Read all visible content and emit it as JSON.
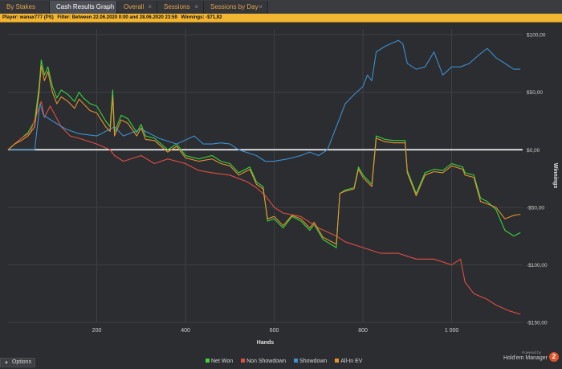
{
  "tabs": [
    {
      "label": "By Stakes",
      "close": ""
    },
    {
      "label": "Cash Results Graph",
      "close": "×"
    },
    {
      "label": "Overall",
      "close": "×"
    },
    {
      "label": "Sessions",
      "close": "×"
    },
    {
      "label": "Sessions by Day",
      "close": "×"
    }
  ],
  "filterbar": {
    "player": "Player: wanax777 (PS)",
    "filter": "Filter: Between 22.06.2020 0:00 and 28.06.2020 23:59",
    "winnings": "Winnings: -$71,92"
  },
  "footer": {
    "options_label": "Options",
    "powered_by": "Powered by",
    "brand_name": "Hold'em Manager",
    "brand_number": "2"
  },
  "colors": {
    "net_won": "#37d43b",
    "non_showdown": "#e04e42",
    "showdown": "#3c8fd0",
    "all_in_ev": "#e8912f",
    "zero_line": "#ffffff",
    "grid": "#3e4045",
    "background": "#2b2d30"
  },
  "chart_data": {
    "type": "line",
    "xlabel": "Hands",
    "ylabel": "Winnings",
    "xlim": [
      0,
      1160
    ],
    "ylim": [
      -150,
      105
    ],
    "x_ticks": [
      200,
      400,
      600,
      800,
      1000
    ],
    "x_tick_labels": [
      "200",
      "400",
      "600",
      "800",
      "1 000"
    ],
    "y_ticks": [
      100,
      50,
      0,
      -50,
      -100,
      -150
    ],
    "y_tick_labels": [
      "$100,00",
      "$50,00",
      "$0,00",
      "-$50,00",
      "-$100,00",
      "-$150,00"
    ],
    "grid": true,
    "legend_position": "bottom",
    "zero_line": 0,
    "series": [
      {
        "name": "Net Won",
        "color": "#37d43b",
        "points": [
          [
            0,
            0
          ],
          [
            15,
            5
          ],
          [
            30,
            10
          ],
          [
            45,
            15
          ],
          [
            60,
            25
          ],
          [
            70,
            55
          ],
          [
            75,
            78
          ],
          [
            82,
            65
          ],
          [
            90,
            72
          ],
          [
            100,
            55
          ],
          [
            110,
            45
          ],
          [
            120,
            52
          ],
          [
            135,
            48
          ],
          [
            150,
            42
          ],
          [
            160,
            50
          ],
          [
            170,
            45
          ],
          [
            185,
            40
          ],
          [
            200,
            38
          ],
          [
            220,
            25
          ],
          [
            230,
            20
          ],
          [
            236,
            52
          ],
          [
            240,
            15
          ],
          [
            255,
            30
          ],
          [
            270,
            27
          ],
          [
            290,
            15
          ],
          [
            300,
            22
          ],
          [
            310,
            12
          ],
          [
            330,
            10
          ],
          [
            360,
            0
          ],
          [
            380,
            5
          ],
          [
            400,
            -5
          ],
          [
            430,
            -8
          ],
          [
            460,
            -5
          ],
          [
            480,
            -10
          ],
          [
            500,
            -12
          ],
          [
            520,
            -20
          ],
          [
            545,
            -15
          ],
          [
            560,
            -28
          ],
          [
            575,
            -32
          ],
          [
            585,
            -62
          ],
          [
            600,
            -60
          ],
          [
            620,
            -68
          ],
          [
            640,
            -58
          ],
          [
            660,
            -62
          ],
          [
            680,
            -70
          ],
          [
            690,
            -65
          ],
          [
            710,
            -78
          ],
          [
            740,
            -85
          ],
          [
            748,
            -38
          ],
          [
            760,
            -35
          ],
          [
            780,
            -33
          ],
          [
            790,
            -15
          ],
          [
            800,
            -22
          ],
          [
            820,
            -30
          ],
          [
            830,
            12
          ],
          [
            850,
            9
          ],
          [
            870,
            8
          ],
          [
            895,
            8
          ],
          [
            900,
            -18
          ],
          [
            920,
            -38
          ],
          [
            940,
            -20
          ],
          [
            960,
            -17
          ],
          [
            980,
            -18
          ],
          [
            1000,
            -12
          ],
          [
            1025,
            -15
          ],
          [
            1030,
            -20
          ],
          [
            1050,
            -22
          ],
          [
            1065,
            -42
          ],
          [
            1080,
            -45
          ],
          [
            1100,
            -52
          ],
          [
            1120,
            -70
          ],
          [
            1140,
            -75
          ],
          [
            1155,
            -72
          ]
        ]
      },
      {
        "name": "Non Showdown",
        "color": "#e04e42",
        "points": [
          [
            0,
            0
          ],
          [
            15,
            5
          ],
          [
            30,
            10
          ],
          [
            50,
            15
          ],
          [
            75,
            42
          ],
          [
            82,
            28
          ],
          [
            95,
            38
          ],
          [
            120,
            20
          ],
          [
            140,
            12
          ],
          [
            160,
            10
          ],
          [
            200,
            5
          ],
          [
            230,
            0
          ],
          [
            240,
            -5
          ],
          [
            260,
            -10
          ],
          [
            300,
            -5
          ],
          [
            330,
            -12
          ],
          [
            360,
            -8
          ],
          [
            400,
            -12
          ],
          [
            430,
            -18
          ],
          [
            460,
            -20
          ],
          [
            500,
            -22
          ],
          [
            540,
            -28
          ],
          [
            560,
            -33
          ],
          [
            580,
            -40
          ],
          [
            600,
            -50
          ],
          [
            620,
            -55
          ],
          [
            660,
            -58
          ],
          [
            700,
            -68
          ],
          [
            740,
            -75
          ],
          [
            760,
            -80
          ],
          [
            800,
            -85
          ],
          [
            840,
            -90
          ],
          [
            880,
            -90
          ],
          [
            920,
            -95
          ],
          [
            960,
            -95
          ],
          [
            1000,
            -100
          ],
          [
            1020,
            -95
          ],
          [
            1030,
            -115
          ],
          [
            1050,
            -125
          ],
          [
            1080,
            -130
          ],
          [
            1100,
            -135
          ],
          [
            1130,
            -140
          ],
          [
            1155,
            -143
          ]
        ]
      },
      {
        "name": "Showdown",
        "color": "#3c8fd0",
        "points": [
          [
            0,
            0
          ],
          [
            20,
            0
          ],
          [
            60,
            0
          ],
          [
            72,
            40
          ],
          [
            80,
            30
          ],
          [
            100,
            25
          ],
          [
            130,
            18
          ],
          [
            160,
            14
          ],
          [
            200,
            12
          ],
          [
            240,
            20
          ],
          [
            260,
            12
          ],
          [
            300,
            18
          ],
          [
            340,
            10
          ],
          [
            380,
            5
          ],
          [
            420,
            12
          ],
          [
            440,
            5
          ],
          [
            460,
            5
          ],
          [
            480,
            6
          ],
          [
            500,
            5
          ],
          [
            520,
            0
          ],
          [
            560,
            -5
          ],
          [
            580,
            -10
          ],
          [
            600,
            -10
          ],
          [
            630,
            -8
          ],
          [
            660,
            -5
          ],
          [
            680,
            -2
          ],
          [
            700,
            -5
          ],
          [
            720,
            0
          ],
          [
            740,
            20
          ],
          [
            760,
            40
          ],
          [
            780,
            48
          ],
          [
            800,
            55
          ],
          [
            810,
            65
          ],
          [
            820,
            60
          ],
          [
            830,
            85
          ],
          [
            850,
            90
          ],
          [
            880,
            95
          ],
          [
            890,
            92
          ],
          [
            900,
            75
          ],
          [
            920,
            70
          ],
          [
            940,
            72
          ],
          [
            960,
            85
          ],
          [
            980,
            65
          ],
          [
            1000,
            72
          ],
          [
            1020,
            72
          ],
          [
            1040,
            75
          ],
          [
            1060,
            82
          ],
          [
            1080,
            88
          ],
          [
            1100,
            80
          ],
          [
            1120,
            75
          ],
          [
            1140,
            70
          ],
          [
            1155,
            70
          ]
        ]
      },
      {
        "name": "All-In EV",
        "color": "#e8912f",
        "points": [
          [
            0,
            0
          ],
          [
            15,
            5
          ],
          [
            30,
            8
          ],
          [
            45,
            12
          ],
          [
            60,
            20
          ],
          [
            70,
            50
          ],
          [
            75,
            73
          ],
          [
            82,
            60
          ],
          [
            90,
            68
          ],
          [
            100,
            50
          ],
          [
            110,
            40
          ],
          [
            120,
            46
          ],
          [
            135,
            42
          ],
          [
            150,
            36
          ],
          [
            160,
            44
          ],
          [
            170,
            40
          ],
          [
            185,
            34
          ],
          [
            200,
            32
          ],
          [
            220,
            20
          ],
          [
            230,
            16
          ],
          [
            236,
            46
          ],
          [
            240,
            12
          ],
          [
            255,
            26
          ],
          [
            270,
            23
          ],
          [
            290,
            12
          ],
          [
            300,
            19
          ],
          [
            310,
            9
          ],
          [
            330,
            8
          ],
          [
            360,
            -2
          ],
          [
            380,
            3
          ],
          [
            400,
            -7
          ],
          [
            430,
            -10
          ],
          [
            460,
            -8
          ],
          [
            480,
            -12
          ],
          [
            500,
            -14
          ],
          [
            520,
            -22
          ],
          [
            545,
            -17
          ],
          [
            560,
            -30
          ],
          [
            575,
            -34
          ],
          [
            585,
            -60
          ],
          [
            600,
            -58
          ],
          [
            620,
            -66
          ],
          [
            640,
            -57
          ],
          [
            660,
            -60
          ],
          [
            680,
            -68
          ],
          [
            690,
            -63
          ],
          [
            710,
            -76
          ],
          [
            740,
            -82
          ],
          [
            748,
            -38
          ],
          [
            760,
            -36
          ],
          [
            780,
            -34
          ],
          [
            790,
            -17
          ],
          [
            800,
            -24
          ],
          [
            820,
            -32
          ],
          [
            830,
            10
          ],
          [
            850,
            7
          ],
          [
            870,
            6
          ],
          [
            895,
            6
          ],
          [
            900,
            -20
          ],
          [
            920,
            -40
          ],
          [
            940,
            -22
          ],
          [
            960,
            -19
          ],
          [
            980,
            -20
          ],
          [
            1000,
            -14
          ],
          [
            1025,
            -17
          ],
          [
            1030,
            -22
          ],
          [
            1050,
            -24
          ],
          [
            1065,
            -45
          ],
          [
            1080,
            -47
          ],
          [
            1100,
            -50
          ],
          [
            1120,
            -60
          ],
          [
            1140,
            -57
          ],
          [
            1155,
            -56
          ]
        ]
      }
    ]
  }
}
